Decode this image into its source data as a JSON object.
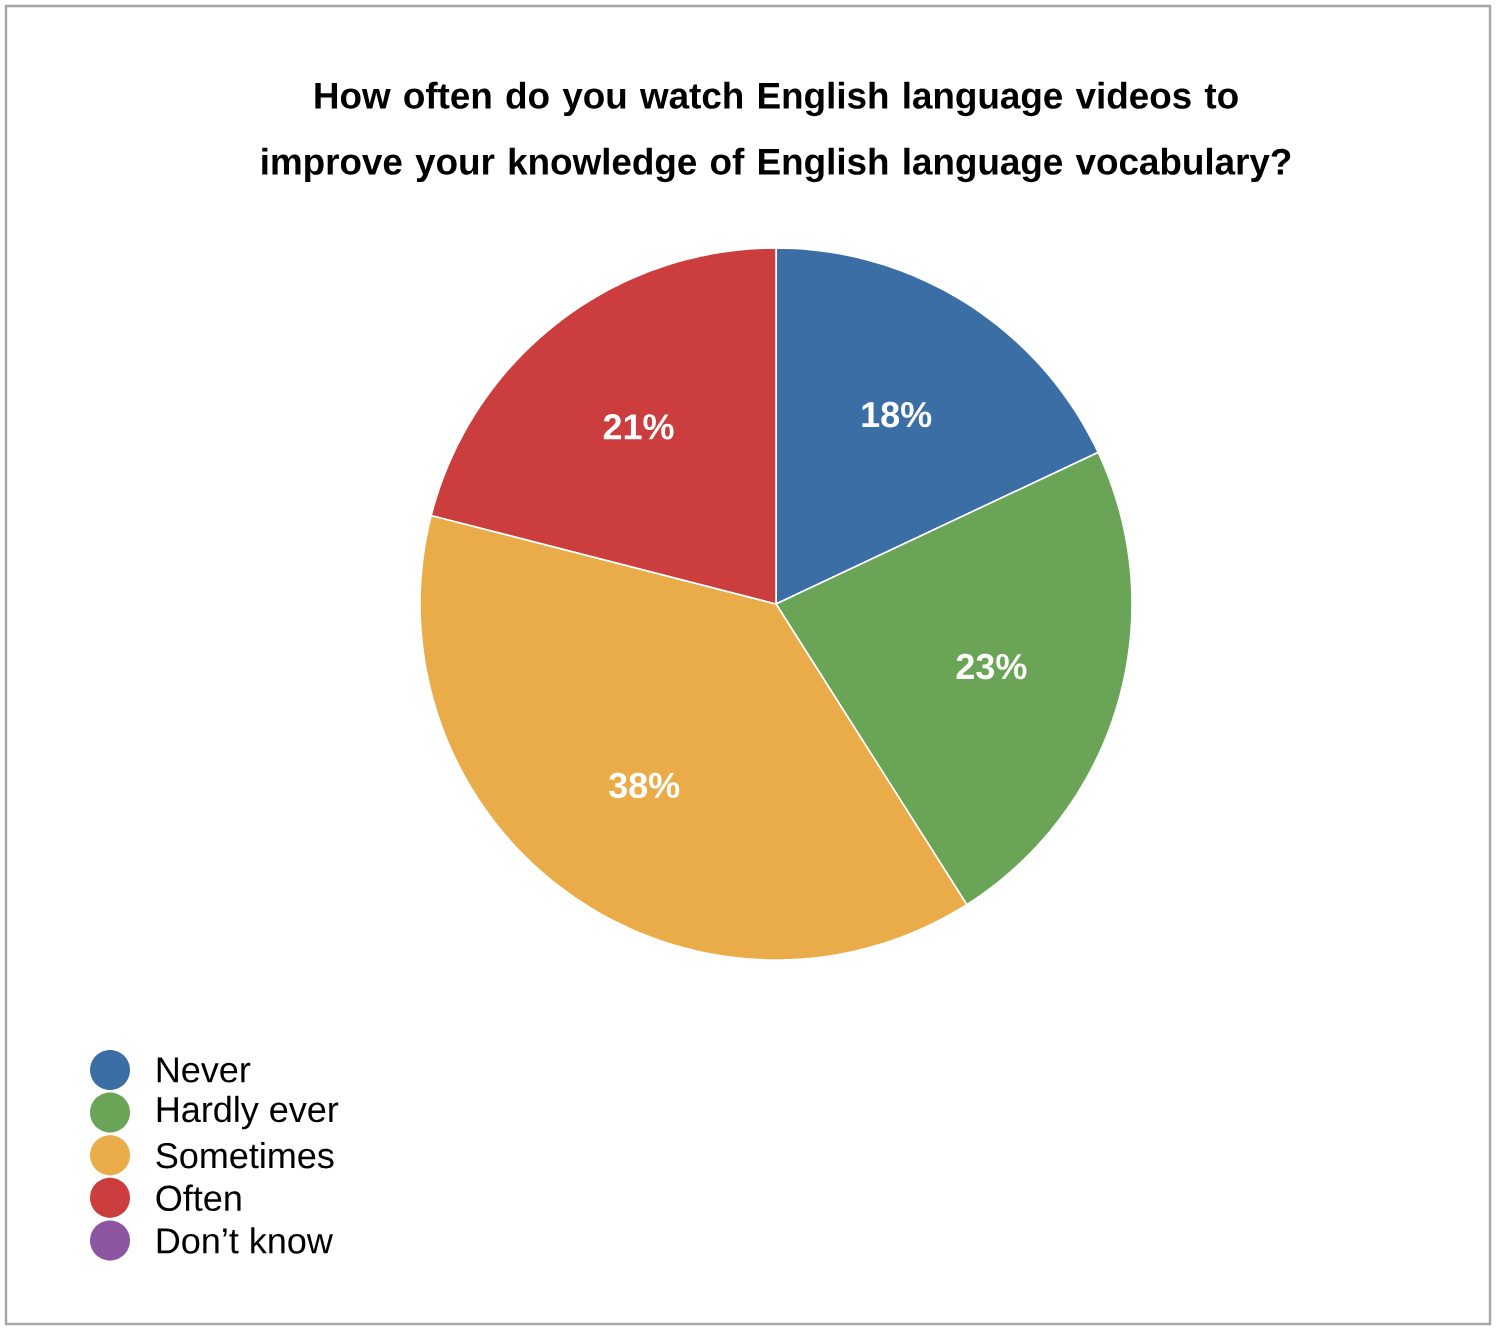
{
  "chart_data": {
    "type": "pie",
    "title": "How often do you watch English language videos to improve your knowledge of English language vocabulary?",
    "categories": [
      "Never",
      "Hardly ever",
      "Sometimes",
      "Often",
      "Don’t know"
    ],
    "values": [
      18,
      23,
      38,
      21,
      0
    ],
    "value_labels": [
      "18%",
      "23%",
      "38%",
      "21%",
      null
    ],
    "colors": [
      "#3a6ea5",
      "#6aa457",
      "#eaac48",
      "#cc3e3e",
      "#8e55a0"
    ],
    "legend": "bottom left"
  }
}
